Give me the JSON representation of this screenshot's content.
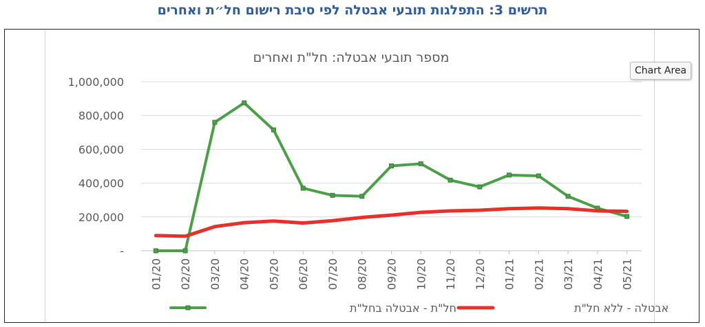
{
  "figure_caption": "תרשים 3: התפלגות תובעי אבטלה לפי סיבת רישום חל״ת ואחרים",
  "tooltip": "Chart Area",
  "colors": {
    "caption": "#2e5b9a",
    "green": "#4aa046",
    "red": "#e8302b",
    "grid": "#d9d9d9",
    "text": "#595959"
  },
  "chart_data": {
    "type": "line",
    "title": "מספר תובעי אבטלה: חל\"ת ואחרים",
    "categories": [
      "01/20",
      "02/20",
      "03/20",
      "04/20",
      "05/20",
      "06/20",
      "07/20",
      "08/20",
      "09/20",
      "10/20",
      "11/20",
      "12/20",
      "01/21",
      "02/21",
      "03/21",
      "04/21",
      "05/21"
    ],
    "y_tick_labels": [
      "-",
      "200,000",
      "400,000",
      "600,000",
      "800,000",
      "1,000,000"
    ],
    "y_ticks": [
      0,
      200000,
      400000,
      600000,
      800000,
      1000000
    ],
    "ylim": [
      0,
      1000000
    ],
    "grid": true,
    "legend_position": "bottom",
    "series": [
      {
        "name": "חל\"ת - אבטלה בחל\"ת",
        "color": "#4aa046",
        "marker": "square",
        "values": [
          0,
          0,
          760000,
          875000,
          715000,
          370000,
          328000,
          322000,
          502000,
          515000,
          418000,
          378000,
          448000,
          443000,
          322000,
          252000,
          203000
        ]
      },
      {
        "name": "אבטלה - ללא חל\"ת",
        "color": "#e8302b",
        "marker": "none",
        "values": [
          90000,
          86000,
          143000,
          166000,
          176000,
          164000,
          178000,
          197000,
          211000,
          227000,
          236000,
          240000,
          249000,
          253000,
          249000,
          236000,
          233000
        ]
      }
    ]
  }
}
